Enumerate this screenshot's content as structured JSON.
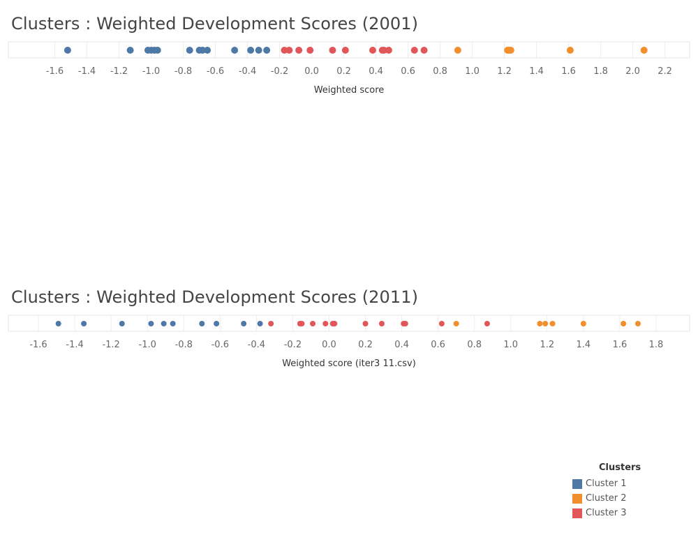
{
  "colors": {
    "Cluster 1": "#4e79a7",
    "Cluster 2": "#f28e2b",
    "Cluster 3": "#e15759"
  },
  "legend": {
    "title": "Clusters",
    "items": [
      {
        "label": "Cluster 1",
        "color": "#4e79a7"
      },
      {
        "label": "Cluster 2",
        "color": "#f28e2b"
      },
      {
        "label": "Cluster 3",
        "color": "#e15759"
      }
    ]
  },
  "chart_data": [
    {
      "type": "scatter",
      "title": "Clusters : Weighted Development Scores (2001)",
      "xlabel": "Weighted score",
      "ylabel": "",
      "xlim": [
        -1.75,
        2.28
      ],
      "ticks": [
        -1.6,
        -1.4,
        -1.2,
        -1.0,
        -0.8,
        -0.6,
        -0.4,
        -0.2,
        0.0,
        0.2,
        0.4,
        0.6,
        0.8,
        1.0,
        1.2,
        1.4,
        1.6,
        1.8,
        2.0,
        2.2
      ],
      "tick_labels": [
        "-1.6",
        "-1.4",
        "-1.2",
        "-1.0",
        "-0.8",
        "-0.6",
        "-0.4",
        "-0.2",
        "0.0",
        "0.2",
        "0.4",
        "0.6",
        "0.8",
        "1.0",
        "1.2",
        "1.4",
        "1.6",
        "1.8",
        "2.0",
        "2.2"
      ],
      "grid": true,
      "series": [
        {
          "name": "Cluster 1",
          "color": "#4e79a7",
          "x": [
            -1.52,
            -1.13,
            -1.02,
            -1.0,
            -0.98,
            -0.96,
            -0.76,
            -0.7,
            -0.68,
            -0.65,
            -0.48,
            -0.38,
            -0.33,
            -0.28
          ]
        },
        {
          "name": "Cluster 3",
          "color": "#e15759",
          "x": [
            -0.17,
            -0.14,
            -0.08,
            -0.01,
            0.13,
            0.21,
            0.38,
            0.44,
            0.45,
            0.48,
            0.64,
            0.7
          ]
        },
        {
          "name": "Cluster 2",
          "color": "#f28e2b",
          "x": [
            0.91,
            1.22,
            1.23,
            1.24,
            1.61,
            2.07
          ]
        }
      ]
    },
    {
      "type": "scatter",
      "title": "Clusters : Weighted Development Scores (2011)",
      "xlabel": "Weighted score (iter3 11.csv)",
      "ylabel": "",
      "xlim": [
        -1.7,
        1.9
      ],
      "ticks": [
        -1.6,
        -1.4,
        -1.2,
        -1.0,
        -0.8,
        -0.6,
        -0.4,
        -0.2,
        0.0,
        0.2,
        0.4,
        0.6,
        0.8,
        1.0,
        1.2,
        1.4,
        1.6,
        1.8
      ],
      "tick_labels": [
        "-1.6",
        "-1.4",
        "-1.2",
        "-1.0",
        "-0.8",
        "-0.6",
        "-0.4",
        "-0.2",
        "0.0",
        "0.2",
        "0.4",
        "0.6",
        "0.8",
        "1.0",
        "1.2",
        "1.4",
        "1.6",
        "1.8"
      ],
      "grid": true,
      "series": [
        {
          "name": "Cluster 1",
          "color": "#4e79a7",
          "x": [
            -1.49,
            -1.35,
            -1.14,
            -0.98,
            -0.91,
            -0.86,
            -0.7,
            -0.62,
            -0.47,
            -0.38
          ]
        },
        {
          "name": "Cluster 3",
          "color": "#e15759",
          "x": [
            -0.32,
            -0.16,
            -0.15,
            -0.09,
            -0.02,
            0.02,
            0.03,
            0.2,
            0.29,
            0.41,
            0.42,
            0.62,
            0.87
          ]
        },
        {
          "name": "Cluster 2",
          "color": "#f28e2b",
          "x": [
            0.7,
            1.16,
            1.19,
            1.23,
            1.4,
            1.62,
            1.7
          ]
        }
      ]
    }
  ]
}
